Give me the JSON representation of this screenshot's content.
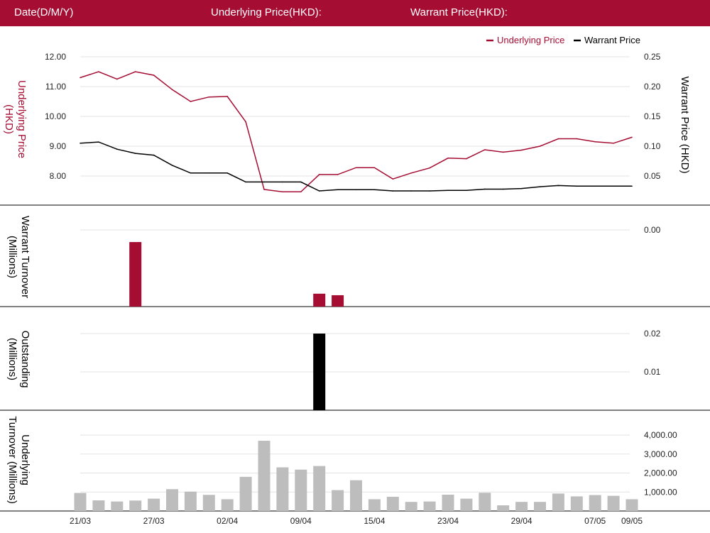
{
  "header": {
    "date_label": "Date(D/M/Y)",
    "underlying_label": "Underlying Price(HKD):",
    "warrant_label": "Warrant Price(HKD):"
  },
  "colors": {
    "accent": "#a50d33",
    "underlying_line": "#a50d33",
    "warrant_line": "#000000",
    "turnover_bar": "#a50d33",
    "outstanding_bar": "#000000",
    "underlying_turnover_bar": "#bdbdbd"
  },
  "x_tick_labels": [
    {
      "index": 0,
      "label": "21/03"
    },
    {
      "index": 4,
      "label": "27/03"
    },
    {
      "index": 8,
      "label": "02/04"
    },
    {
      "index": 12,
      "label": "09/04"
    },
    {
      "index": 16,
      "label": "15/04"
    },
    {
      "index": 20,
      "label": "23/04"
    },
    {
      "index": 24,
      "label": "29/04"
    },
    {
      "index": 28,
      "label": "07/05"
    },
    {
      "index": 30,
      "label": "09/05"
    }
  ],
  "chart_data": [
    {
      "type": "line",
      "legend": {
        "position": "top-right",
        "items": [
          "Underlying Price",
          "Warrant Price"
        ]
      },
      "ylabel_left": "Underlying Price (HKD)",
      "ylabel_right": "Warrant  Price (HKD)",
      "yticks_left": [
        "12.00",
        "11.00",
        "10.00",
        "9.00",
        "8.00"
      ],
      "yticks_right": [
        "0.25",
        "0.20",
        "0.15",
        "0.10",
        "0.05"
      ],
      "ylim_left": [
        7.2,
        12.0
      ],
      "ylim_right": [
        0.025,
        0.25
      ],
      "series": [
        {
          "name": "Underlying Price",
          "axis": "left",
          "values": [
            11.3,
            11.5,
            11.25,
            11.5,
            11.38,
            10.9,
            10.5,
            10.65,
            10.67,
            9.82,
            7.55,
            7.47,
            7.47,
            8.05,
            8.05,
            8.28,
            8.28,
            7.9,
            8.1,
            8.27,
            8.6,
            8.58,
            8.88,
            8.8,
            8.87,
            9.0,
            9.25,
            9.25,
            9.15,
            9.1,
            9.3
          ]
        },
        {
          "name": "Warrant Price",
          "axis": "right",
          "values": [
            0.105,
            0.107,
            0.095,
            0.088,
            0.085,
            0.068,
            0.055,
            0.055,
            0.055,
            0.04,
            0.04,
            0.04,
            0.04,
            0.025,
            0.027,
            0.027,
            0.027,
            0.025,
            0.025,
            0.025,
            0.026,
            0.026,
            0.028,
            0.028,
            0.029,
            0.032,
            0.034,
            0.033,
            0.033,
            0.033,
            0.033
          ]
        }
      ]
    },
    {
      "type": "bar",
      "ylabel": "Warrant  Turnover (Millions)",
      "yticks_right": [
        "0.00"
      ],
      "values": [
        0,
        0,
        0,
        0.00085,
        0,
        0,
        0,
        0,
        0,
        0,
        0,
        0,
        0,
        0.00017,
        0.00015,
        0,
        0,
        0,
        0,
        0,
        0,
        0,
        0,
        0,
        0,
        0,
        0,
        0,
        0,
        0,
        0
      ],
      "ylim": [
        0,
        0.001
      ]
    },
    {
      "type": "bar",
      "ylabel": "Outstanding (Millions)",
      "yticks_right": [
        "0.02",
        "0.01"
      ],
      "values": [
        0,
        0,
        0,
        0,
        0,
        0,
        0,
        0,
        0,
        0,
        0,
        0,
        0,
        0.02,
        0,
        0,
        0,
        0,
        0,
        0,
        0,
        0,
        0,
        0,
        0,
        0,
        0,
        0,
        0,
        0,
        0
      ],
      "ylim": [
        0,
        0.02
      ]
    },
    {
      "type": "bar",
      "ylabel": "Underlying Turnover (Millions)",
      "yticks_right": [
        "4,000.00",
        "3,000.00",
        "2,000.00",
        "1,000.00"
      ],
      "values": [
        950,
        560,
        500,
        550,
        650,
        1150,
        1020,
        850,
        620,
        1800,
        3700,
        2300,
        2180,
        2370,
        1100,
        1620,
        620,
        750,
        480,
        500,
        860,
        650,
        960,
        300,
        480,
        480,
        920,
        770,
        840,
        800,
        620
      ],
      "ylim": [
        0,
        4000
      ]
    }
  ]
}
